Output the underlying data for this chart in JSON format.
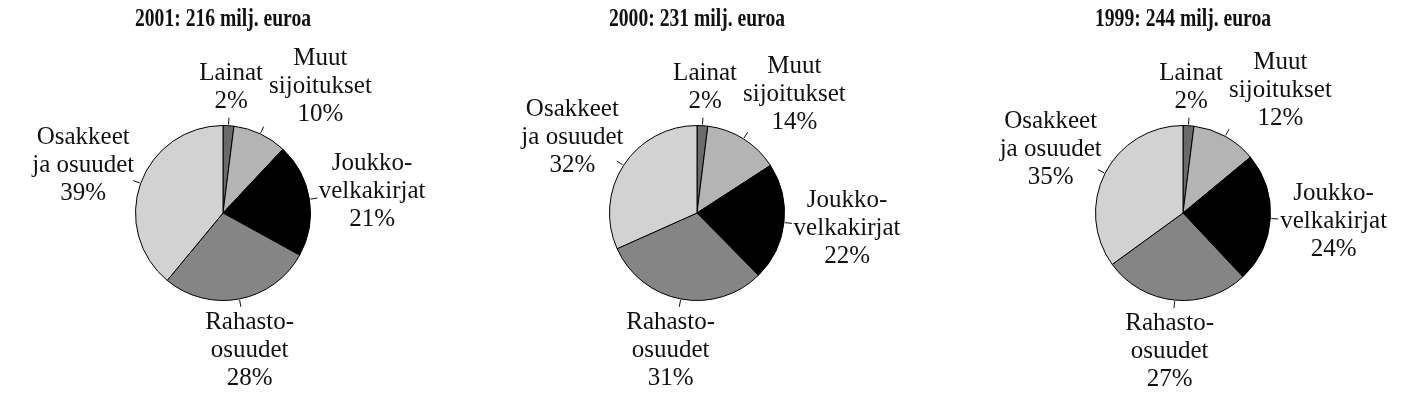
{
  "chart_data": [
    {
      "type": "pie",
      "title": "2001: 216 milj. euroa",
      "categories": [
        "Lainat",
        "Muut sijoitukset",
        "Joukko-velkakirjat",
        "Rahasto-osuudet",
        "Osakkeet ja osuudet"
      ],
      "values": [
        2,
        10,
        21,
        28,
        39
      ],
      "value_labels": [
        "2%",
        "10%",
        "21%",
        "28%",
        "39%"
      ],
      "colors": [
        "#6a6a6a",
        "#b4b4b4",
        "#000000",
        "#858585",
        "#d2d2d2"
      ]
    },
    {
      "type": "pie",
      "title": "2000: 231 milj. euroa",
      "categories": [
        "Lainat",
        "Muut sijoitukset",
        "Joukko-velkakirjat",
        "Rahasto-osuudet",
        "Osakkeet ja osuudet"
      ],
      "values": [
        2,
        14,
        22,
        31,
        32
      ],
      "value_labels": [
        "2%",
        "14%",
        "22%",
        "31%",
        "32%"
      ],
      "colors": [
        "#6a6a6a",
        "#b4b4b4",
        "#000000",
        "#858585",
        "#d2d2d2"
      ]
    },
    {
      "type": "pie",
      "title": "1999: 244 milj. euroa",
      "categories": [
        "Lainat",
        "Muut sijoitukset",
        "Joukko-velkakirjat",
        "Rahasto-osuudet",
        "Osakkeet ja osuudet"
      ],
      "values": [
        2,
        12,
        24,
        27,
        35
      ],
      "value_labels": [
        "2%",
        "12%",
        "24%",
        "27%",
        "35%"
      ],
      "colors": [
        "#6a6a6a",
        "#b4b4b4",
        "#000000",
        "#858585",
        "#d2d2d2"
      ]
    }
  ]
}
